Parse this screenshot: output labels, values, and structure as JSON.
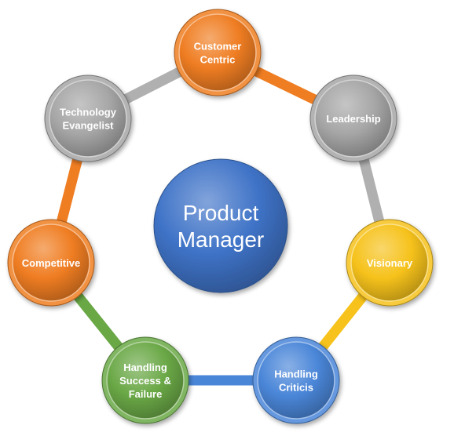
{
  "diagram": {
    "center": {
      "lines": [
        "Product",
        "Manager"
      ],
      "color": "#3f73c7"
    },
    "nodes": [
      {
        "id": "customer-centric",
        "lines": [
          "Customer",
          "Centric"
        ],
        "color": "#ef7d22"
      },
      {
        "id": "leadership",
        "lines": [
          "Leadership"
        ],
        "color": "#a6a6a6"
      },
      {
        "id": "visionary",
        "lines": [
          "Visionary"
        ],
        "color": "#f6c21b"
      },
      {
        "id": "handling-criticis",
        "lines": [
          "Handling",
          "Criticis"
        ],
        "color": "#4a86d8"
      },
      {
        "id": "handling-success-failure",
        "lines": [
          "Handling",
          "Success &",
          "Failure"
        ],
        "color": "#6aa846"
      },
      {
        "id": "competitive",
        "lines": [
          "Competitive"
        ],
        "color": "#ef7d22"
      },
      {
        "id": "technology-evangelist",
        "lines": [
          "Technology",
          "Evangelist"
        ],
        "color": "#a6a6a6"
      }
    ],
    "ring_segments": [
      {
        "from": "technology-evangelist",
        "to": "customer-centric",
        "color": "#b0b0b0"
      },
      {
        "from": "customer-centric",
        "to": "leadership",
        "color": "#ef7d22"
      },
      {
        "from": "leadership",
        "to": "visionary",
        "color": "#b0b0b0"
      },
      {
        "from": "visionary",
        "to": "handling-criticis",
        "color": "#f6c21b"
      },
      {
        "from": "handling-criticis",
        "to": "handling-success-failure",
        "color": "#4a86d8"
      },
      {
        "from": "handling-success-failure",
        "to": "competitive",
        "color": "#6aa846"
      },
      {
        "from": "competitive",
        "to": "technology-evangelist",
        "color": "#ef7d22"
      }
    ]
  }
}
